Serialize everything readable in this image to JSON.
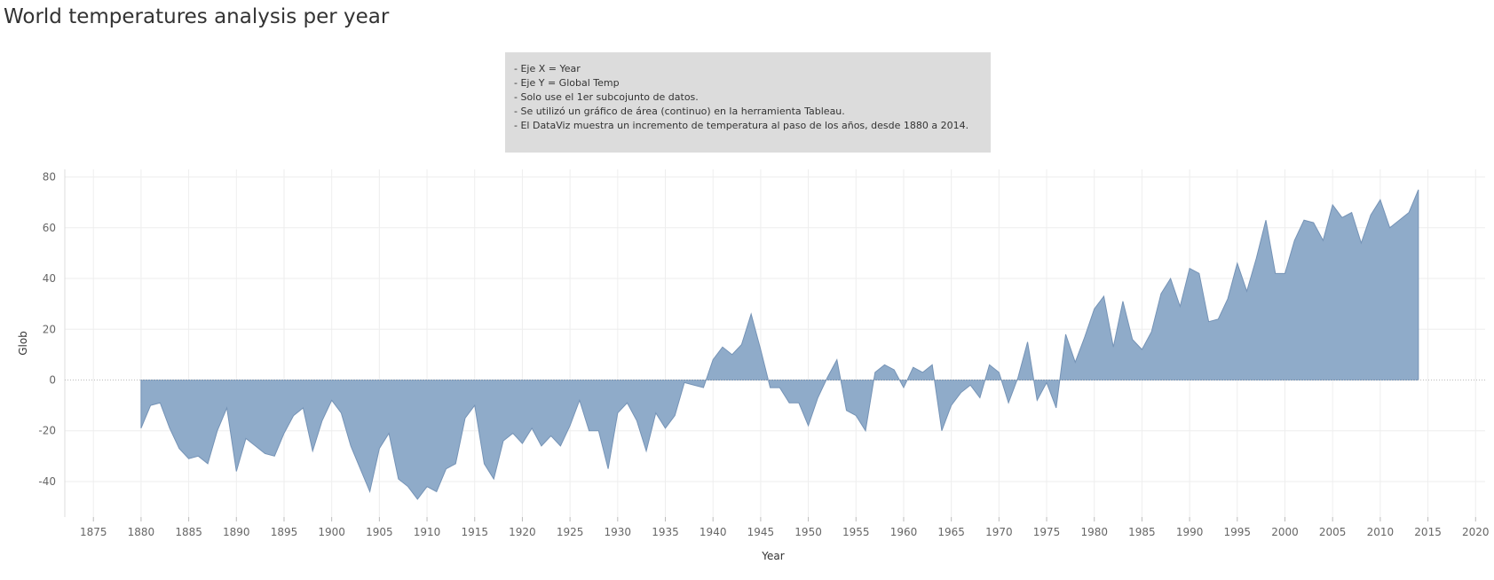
{
  "page": {
    "title": "World temperatures analysis per year"
  },
  "notes": {
    "lines": [
      "- Eje X = Year",
      "- Eje Y = Global Temp",
      "- Solo use el 1er subcojunto de datos.",
      "- Se utilizó un gráfico de área (continuo) en la herramienta Tableau.",
      "- El DataViz muestra un incremento de temperatura al paso de los años, desde 1880 a 2014."
    ]
  },
  "colors": {
    "area_fill": "#8fabc9",
    "area_stroke": "#7593b6",
    "grid": "#eeeeee",
    "zero_line": "#bbbbbb"
  },
  "chart_data": {
    "type": "area",
    "title": "",
    "xlabel": "Year",
    "ylabel": "Glob",
    "xlim": [
      1872,
      2021
    ],
    "ylim": [
      -54,
      83
    ],
    "x_ticks": [
      1875,
      1880,
      1885,
      1890,
      1895,
      1900,
      1905,
      1910,
      1915,
      1920,
      1925,
      1930,
      1935,
      1940,
      1945,
      1950,
      1955,
      1960,
      1965,
      1970,
      1975,
      1980,
      1985,
      1990,
      1995,
      2000,
      2005,
      2010,
      2015,
      2020
    ],
    "y_ticks": [
      -40,
      -20,
      0,
      20,
      40,
      60,
      80
    ],
    "grid": true,
    "series": [
      {
        "x": [
          1880,
          1881,
          1882,
          1883,
          1884,
          1885,
          1886,
          1887,
          1888,
          1889,
          1890,
          1891,
          1892,
          1893,
          1894,
          1895,
          1896,
          1897,
          1898,
          1899,
          1900,
          1901,
          1902,
          1903,
          1904,
          1905,
          1906,
          1907,
          1908,
          1909,
          1910,
          1911,
          1912,
          1913,
          1914,
          1915,
          1916,
          1917,
          1918,
          1919,
          1920,
          1921,
          1922,
          1923,
          1924,
          1925,
          1926,
          1927,
          1928,
          1929,
          1930,
          1931,
          1932,
          1933,
          1934,
          1935,
          1936,
          1937,
          1938,
          1939,
          1940,
          1941,
          1942,
          1943,
          1944,
          1945,
          1946,
          1947,
          1948,
          1949,
          1950,
          1951,
          1952,
          1953,
          1954,
          1955,
          1956,
          1957,
          1958,
          1959,
          1960,
          1961,
          1962,
          1963,
          1964,
          1965,
          1966,
          1967,
          1968,
          1969,
          1970,
          1971,
          1972,
          1973,
          1974,
          1975,
          1976,
          1977,
          1978,
          1979,
          1980,
          1981,
          1982,
          1983,
          1984,
          1985,
          1986,
          1987,
          1988,
          1989,
          1990,
          1991,
          1992,
          1993,
          1994,
          1995,
          1996,
          1997,
          1998,
          1999,
          2000,
          2001,
          2002,
          2003,
          2004,
          2005,
          2006,
          2007,
          2008,
          2009,
          2010,
          2011,
          2012,
          2013,
          2014
        ],
        "values": [
          -19,
          -10,
          -9,
          -19,
          -27,
          -31,
          -30,
          -33,
          -20,
          -11,
          -36,
          -23,
          -26,
          -29,
          -30,
          -21,
          -14,
          -11,
          -28,
          -16,
          -8,
          -13,
          -26,
          -35,
          -44,
          -27,
          -21,
          -39,
          -42,
          -47,
          -42,
          -44,
          -35,
          -33,
          -15,
          -10,
          -33,
          -39,
          -24,
          -21,
          -25,
          -19,
          -26,
          -22,
          -26,
          -18,
          -8,
          -20,
          -20,
          -35,
          -13,
          -9,
          -16,
          -28,
          -13,
          -19,
          -14,
          -1,
          -2,
          -3,
          8,
          13,
          10,
          14,
          26,
          12,
          -3,
          -3,
          -9,
          -9,
          -18,
          -7,
          1,
          8,
          -12,
          -14,
          -20,
          3,
          6,
          4,
          -3,
          5,
          3,
          6,
          -20,
          -10,
          -5,
          -2,
          -7,
          6,
          3,
          -9,
          1,
          15,
          -8,
          -1,
          -11,
          18,
          7,
          17,
          28,
          33,
          13,
          31,
          16,
          12,
          19,
          34,
          40,
          29,
          44,
          42,
          23,
          24,
          32,
          46,
          35,
          48,
          63,
          42,
          42,
          55,
          63,
          62,
          55,
          69,
          64,
          66,
          54,
          65,
          71,
          60,
          63,
          66,
          75
        ]
      }
    ]
  }
}
